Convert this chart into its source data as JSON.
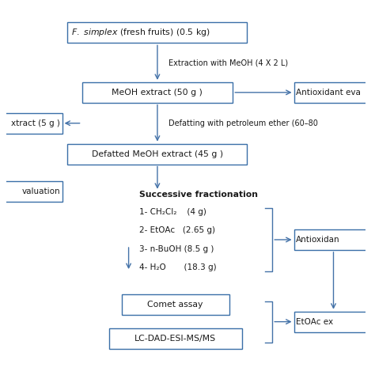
{
  "bg_color": "#ffffff",
  "box_color": "#ffffff",
  "box_edge_color": "#3a6fa8",
  "arrow_color": "#4472a8",
  "text_color": "#1a1a1a",
  "label_extraction": "Extraction with MeOH (4 X 2 L)",
  "label_defatting": "Defatting with petroleum ether (60–80",
  "fractionation_title": "Successive fractionation",
  "frac_lines": [
    "1- CH₂Cl₂    (4 g)",
    "2- EtOAc   (2.65 g)",
    "3- n-BuOH (8.5 g )",
    "4- H₂O       (18.3 g)"
  ],
  "box_top_text": " (fresh fruits) (0.5 kg)",
  "box_meoh": "MeOH extract (50 g )",
  "box_defatted": "Defatted MeOH extract (45 g )",
  "box_comet": "Comet assay",
  "box_lc": "LC-DAD-ESI-MS/MS",
  "partial_left1": "xtract (5 g )",
  "partial_left2": "valuation",
  "partial_right1": "Antioxidant eva",
  "partial_right2": "Antioxidan",
  "partial_right3": "EtOAc ex"
}
